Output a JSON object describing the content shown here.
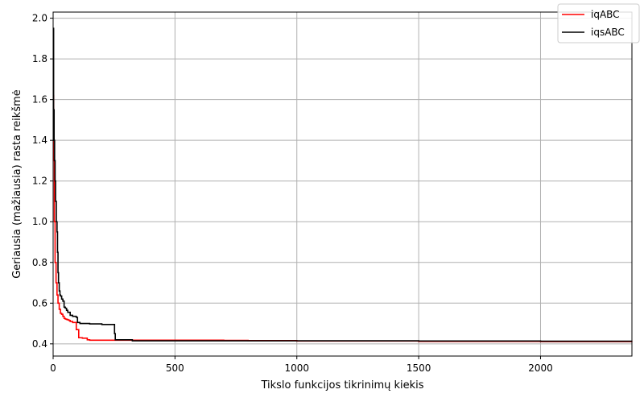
{
  "chart_data": {
    "type": "line",
    "title": "",
    "xlabel": "Tikslo funkcijos tikrinimų kiekis",
    "ylabel": "Geriausia (mažiausia) rasta reikšmė",
    "xlim": [
      0,
      2375
    ],
    "ylim": [
      0.34,
      2.03
    ],
    "xticks": [
      0,
      500,
      1000,
      1500,
      2000
    ],
    "yticks": [
      0.4,
      0.6,
      0.8,
      1.0,
      1.2,
      1.4,
      1.6,
      1.8,
      2.0
    ],
    "xtick_labels": [
      "0",
      "500",
      "1000",
      "1500",
      "2000"
    ],
    "ytick_labels": [
      "0.4",
      "0.6",
      "0.8",
      "1.0",
      "1.2",
      "1.4",
      "1.6",
      "1.8",
      "2.0"
    ],
    "grid": true,
    "legend": {
      "position": "top-right",
      "entries": [
        "iqABC",
        "iqsABC"
      ]
    },
    "series": [
      {
        "name": "iqABC",
        "color": "#ff0000",
        "x": [
          0,
          2,
          5,
          8,
          12,
          16,
          20,
          25,
          30,
          35,
          40,
          45,
          50,
          55,
          60,
          65,
          70,
          80,
          90,
          95,
          100,
          105,
          110,
          120,
          130,
          140,
          150,
          180,
          200,
          250,
          300,
          400,
          500,
          600,
          700,
          800,
          1000,
          1500,
          2000,
          2375
        ],
        "y": [
          1.62,
          1.3,
          1.0,
          0.8,
          0.7,
          0.64,
          0.6,
          0.57,
          0.55,
          0.545,
          0.535,
          0.525,
          0.522,
          0.52,
          0.518,
          0.515,
          0.51,
          0.505,
          0.505,
          0.47,
          0.47,
          0.43,
          0.43,
          0.428,
          0.428,
          0.42,
          0.418,
          0.418,
          0.418,
          0.418,
          0.418,
          0.418,
          0.418,
          0.418,
          0.417,
          0.416,
          0.414,
          0.412,
          0.411,
          0.41
        ]
      },
      {
        "name": "iqsABC",
        "color": "#000000",
        "x": [
          0,
          2,
          4,
          6,
          8,
          10,
          13,
          16,
          18,
          20,
          22,
          25,
          28,
          30,
          35,
          40,
          45,
          50,
          55,
          60,
          70,
          80,
          90,
          95,
          100,
          105,
          110,
          150,
          200,
          250,
          252,
          255,
          300,
          320,
          325,
          400,
          600,
          800,
          1000,
          1500,
          2000,
          2375
        ],
        "y": [
          1.95,
          1.55,
          1.4,
          1.3,
          1.2,
          1.1,
          1.0,
          0.95,
          0.85,
          0.75,
          0.7,
          0.66,
          0.64,
          0.635,
          0.62,
          0.61,
          0.58,
          0.575,
          0.565,
          0.555,
          0.54,
          0.535,
          0.535,
          0.53,
          0.505,
          0.505,
          0.5,
          0.498,
          0.495,
          0.495,
          0.45,
          0.42,
          0.42,
          0.42,
          0.415,
          0.415,
          0.415,
          0.415,
          0.415,
          0.414,
          0.413,
          0.413
        ]
      }
    ]
  }
}
